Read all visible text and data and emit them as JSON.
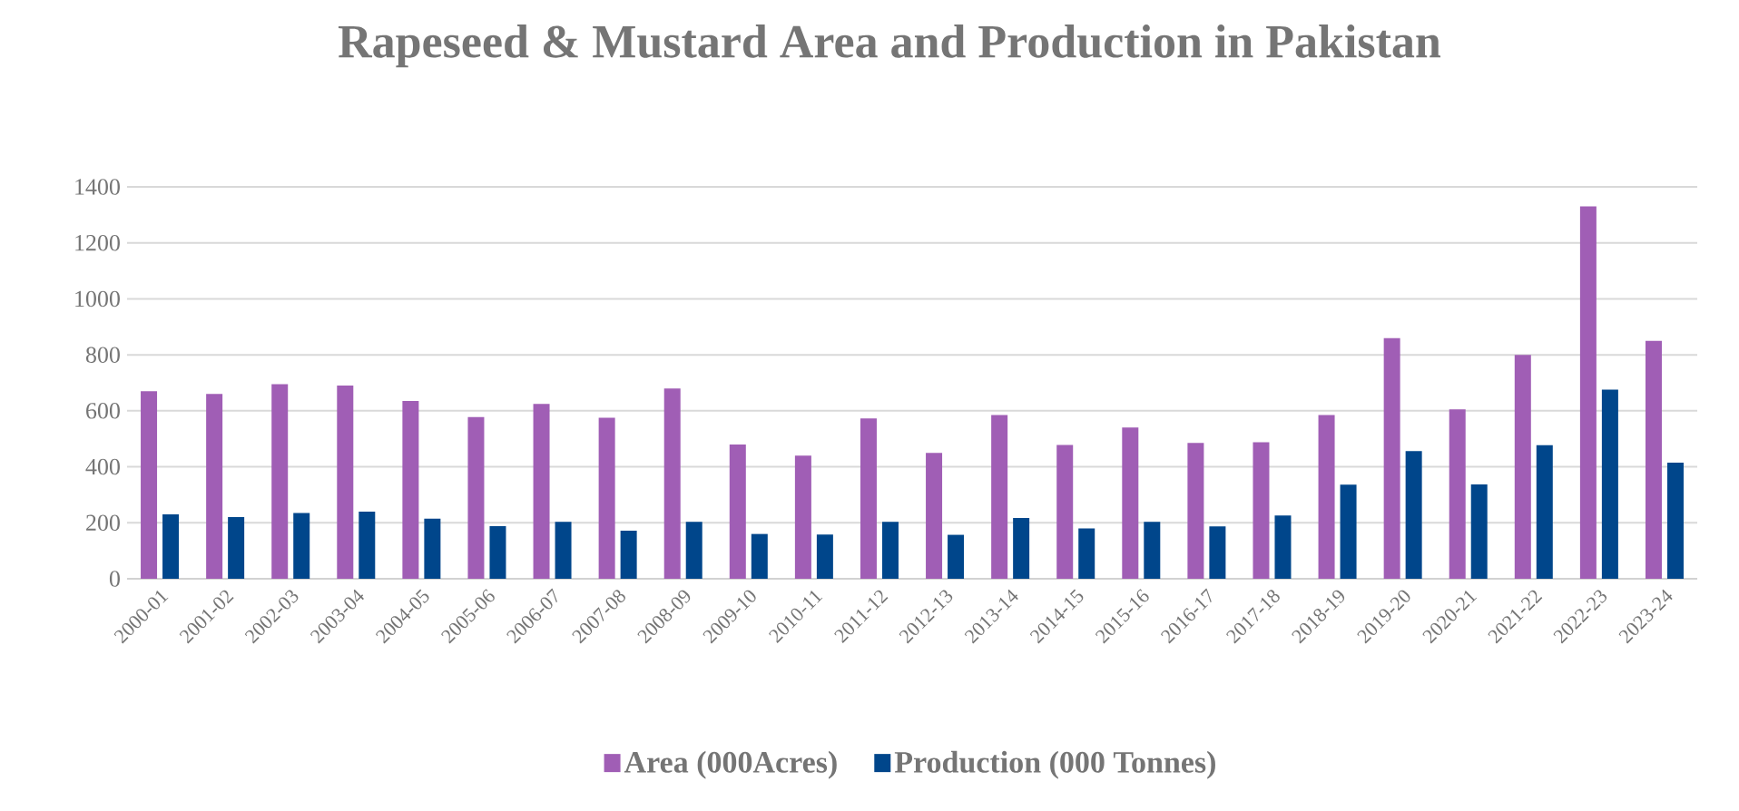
{
  "chart_data": {
    "type": "bar",
    "title": "Rapeseed & Mustard Area and Production in Pakistan",
    "categories": [
      "2000-01",
      "2001-02",
      "2002-03",
      "2003-04",
      "2004-05",
      "2005-06",
      "2006-07",
      "2007-08",
      "2008-09",
      "2009-10",
      "2010-11",
      "2011-12",
      "2012-13",
      "2013-14",
      "2014-15",
      "2015-16",
      "2016-17",
      "2017-18",
      "2018-19",
      "2019-20",
      "2020-21",
      "2021-22",
      "2022-23",
      "2023-24"
    ],
    "series": [
      {
        "name": "Area (000Acres)",
        "color": "#a05eb5",
        "values": [
          670,
          660,
          695,
          690,
          635,
          578,
          625,
          575,
          680,
          480,
          440,
          573,
          450,
          585,
          478,
          540,
          485,
          488,
          585,
          860,
          605,
          800,
          1330,
          850
        ]
      },
      {
        "name": "Production (000 Tonnes)",
        "color": "#00468b",
        "values": [
          230,
          220,
          235,
          240,
          215,
          188,
          203,
          172,
          203,
          160,
          158,
          203,
          157,
          217,
          180,
          203,
          187,
          226,
          336,
          456,
          337,
          477,
          676,
          415
        ]
      }
    ],
    "ylim": [
      0,
      1400
    ],
    "yticks": [
      0,
      200,
      400,
      600,
      800,
      1000,
      1200,
      1400
    ],
    "grid": "y",
    "legend": "bottom"
  }
}
